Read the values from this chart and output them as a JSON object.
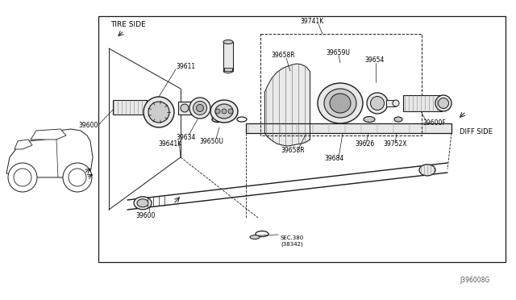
{
  "bg_color": "#ffffff",
  "lc": "#1a1a1a",
  "fc_light": "#e8e8e8",
  "fc_mid": "#cccccc",
  "fc_dark": "#aaaaaa",
  "diagram_id": "J396008G",
  "labels": {
    "tire_side": "TIRE SIDE",
    "diff_side": "DIFF SIDE",
    "39600_l": "39600",
    "39611": "39611",
    "39634": "39634",
    "39650U": "39650U",
    "39641K": "39641K",
    "39741K": "39741K",
    "39658R_top": "39658R",
    "39659U": "39659U",
    "39654": "39654",
    "39658R_bot": "39658R",
    "39626": "39626",
    "39752X": "39752X",
    "39600F": "39600F",
    "39684": "39684",
    "39600_b": "39600",
    "sec380": "SEC.380\n(38342)"
  },
  "fs": 6.5,
  "sfs": 5.5
}
